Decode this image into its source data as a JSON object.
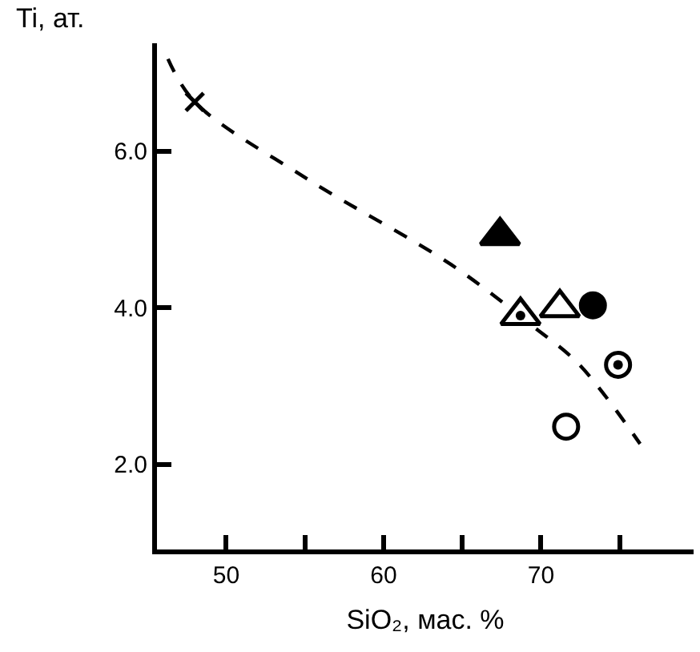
{
  "chart_data": {
    "type": "scatter",
    "xlabel": "SiO₂, мас. %",
    "ylabel": "Ti, ат.",
    "xlim": [
      45.6,
      79.7
    ],
    "ylim": [
      0.91,
      7.38
    ],
    "xticks": [
      50,
      {
        "value": 55,
        "label": null
      },
      60,
      {
        "value": 65,
        "label": null
      },
      70,
      {
        "value": 75,
        "label": null
      }
    ],
    "yticks": [
      {
        "value": 2,
        "label": "2.0"
      },
      {
        "value": 4,
        "label": "4.0"
      },
      {
        "value": 6,
        "label": "6.0"
      }
    ],
    "series": [
      {
        "type": "line",
        "color": "#000000",
        "marker": "none",
        "line_style": "dashed",
        "x": [
          46.3,
          48,
          55.2,
          64.3,
          69.5,
          72.4,
          76.3
        ],
        "values": [
          7.18,
          6.63,
          5.64,
          4.55,
          3.76,
          3.28,
          2.26
        ]
      },
      {
        "color": "#000000",
        "marker": "cross",
        "x": [
          48
        ],
        "values": [
          6.63
        ]
      },
      {
        "color": "#000000",
        "marker": "triangle",
        "x": [
          67.4
        ],
        "values": [
          4.92
        ]
      },
      {
        "color": "#ffffff",
        "marker": "triangle",
        "x": [
          68.7
        ],
        "values": [
          3.9
        ]
      },
      {
        "color": "#000000",
        "marker": "circle",
        "x": [
          68.7
        ],
        "values": [
          3.9
        ]
      },
      {
        "color": "#ffffff",
        "marker": "triangle",
        "x": [
          71.2
        ],
        "values": [
          4.0
        ]
      },
      {
        "color": "#000000",
        "marker": "circle",
        "x": [
          73.3
        ],
        "values": [
          4.03
        ]
      },
      {
        "color": "#ffffff",
        "marker": "circle",
        "x": [
          74.9
        ],
        "values": [
          3.27
        ]
      },
      {
        "color": "#000000",
        "marker": "circle",
        "x": [
          74.9
        ],
        "values": [
          3.27
        ]
      },
      {
        "color": "#ffffff",
        "marker": "circle",
        "x": [
          71.6
        ],
        "values": [
          2.48
        ]
      }
    ]
  }
}
